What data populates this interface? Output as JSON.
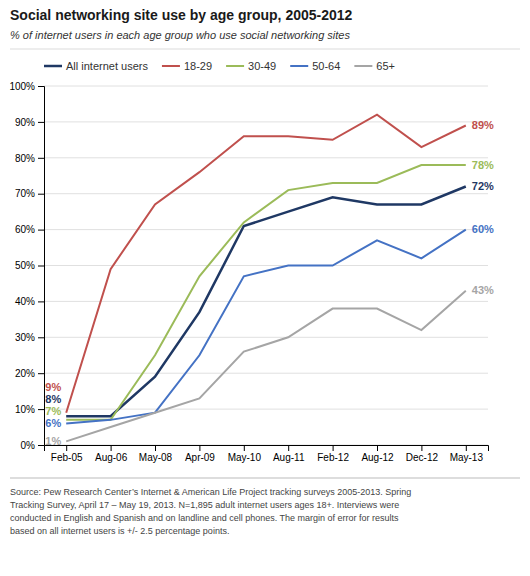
{
  "chart_data": {
    "type": "line",
    "title": "Social networking site use by age group, 2005-2012",
    "subtitle": "% of internet users in each age group who use social networking sites",
    "categories": [
      "Feb-05",
      "Aug-06",
      "May-08",
      "Apr-09",
      "May-10",
      "Aug-11",
      "Feb-12",
      "Aug-12",
      "Dec-12",
      "May-13"
    ],
    "series": [
      {
        "name": "All internet users",
        "color": "#1f3864",
        "values": [
          8,
          8,
          19,
          37,
          61,
          65,
          69,
          67,
          67,
          72
        ],
        "value_labels": [
          "8%",
          null,
          null,
          null,
          null,
          null,
          null,
          null,
          null,
          "72%"
        ]
      },
      {
        "name": "18-29",
        "color": "#c0504d",
        "values": [
          9,
          49,
          67,
          76,
          86,
          86,
          85,
          92,
          83,
          89
        ],
        "value_labels": [
          "9%",
          null,
          null,
          null,
          null,
          null,
          null,
          null,
          null,
          "89%"
        ]
      },
      {
        "name": "30-49",
        "color": "#9bbb59",
        "values": [
          7,
          7,
          25,
          47,
          62,
          71,
          73,
          73,
          78,
          78
        ],
        "value_labels": [
          "7%",
          null,
          null,
          null,
          null,
          null,
          null,
          null,
          null,
          "78%"
        ]
      },
      {
        "name": "50-64",
        "color": "#4472c4",
        "values": [
          6,
          7,
          9,
          25,
          47,
          50,
          50,
          57,
          52,
          60
        ],
        "value_labels": [
          "6%",
          null,
          null,
          null,
          null,
          null,
          null,
          null,
          null,
          "60%"
        ]
      },
      {
        "name": "65+",
        "color": "#a5a5a5",
        "values": [
          1,
          5,
          9,
          13,
          26,
          30,
          38,
          38,
          32,
          43
        ],
        "value_labels": [
          "1%",
          null,
          null,
          null,
          null,
          null,
          null,
          null,
          null,
          "43%"
        ]
      }
    ],
    "ylim": [
      0,
      100
    ],
    "yticks": [
      {
        "value": 0,
        "label": "0%"
      },
      {
        "value": 10,
        "label": "10%"
      },
      {
        "value": 20,
        "label": "20%"
      },
      {
        "value": 30,
        "label": "30%"
      },
      {
        "value": 40,
        "label": "40%"
      },
      {
        "value": 50,
        "label": "50%"
      },
      {
        "value": 60,
        "label": "60%"
      },
      {
        "value": 70,
        "label": "70%"
      },
      {
        "value": 80,
        "label": "80%"
      },
      {
        "value": 90,
        "label": "90%"
      },
      {
        "value": 100,
        "label": "100%"
      }
    ],
    "grid": true,
    "legend": "top",
    "data_labels": true,
    "source": "Source: Pew Research Center’s Internet & American Life Project tracking surveys 2005-2013. Spring\nTracking Survey, April 17 – May 19, 2013. N=1,895 adult internet users ages 18+. Interviews were\nconducted in English and Spanish and on landline and cell phones.  The margin of error for results\nbased on all internet users is +/- 2.5 percentage points."
  }
}
